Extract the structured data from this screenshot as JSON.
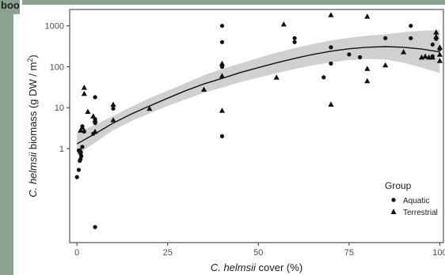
{
  "page_label": "boo",
  "chart_data": {
    "type": "scatter",
    "title": "",
    "xlabel_italic": "C. helmsii",
    "xlabel_rest": " cover (%)",
    "ylabel_italic": "C. helmsii",
    "ylabel_rest": " biomass (g DW / m",
    "ylabel_sup": "2",
    "ylabel_close": ")",
    "xlim": [
      -2,
      101
    ],
    "ylim_log10": [
      -2.3,
      3.4
    ],
    "y_scale": "log",
    "x_ticks": [
      0,
      25,
      50,
      75,
      100
    ],
    "x_tick_labels": [
      "0",
      "25",
      "50",
      "75",
      "100"
    ],
    "y_ticks": [
      1,
      10,
      100,
      1000
    ],
    "y_tick_labels": [
      "1",
      "10",
      "100",
      "1000"
    ],
    "grid": false,
    "legend": {
      "title": "Group",
      "placement": "right-inside",
      "entries": [
        {
          "label": "Aquatic",
          "marker": "circle"
        },
        {
          "label": "Terrestrial",
          "marker": "triangle"
        }
      ]
    },
    "series": [
      {
        "name": "Aquatic",
        "marker": "circle",
        "points": [
          [
            0,
            0.2
          ],
          [
            0.5,
            0.3
          ],
          [
            0.8,
            0.5
          ],
          [
            1,
            0.55
          ],
          [
            1,
            0.75
          ],
          [
            1.2,
            0.65
          ],
          [
            0.5,
            0.9
          ],
          [
            1.5,
            1.1
          ],
          [
            2,
            2.6
          ],
          [
            1.5,
            3.5
          ],
          [
            4.5,
            2.3
          ],
          [
            5,
            4.2
          ],
          [
            5,
            5.2
          ],
          [
            5,
            18
          ],
          [
            5,
            0.012
          ],
          [
            10,
            9.5
          ],
          [
            40,
            1000
          ],
          [
            40,
            400
          ],
          [
            40,
            100
          ],
          [
            40,
            2
          ],
          [
            60,
            500
          ],
          [
            60,
            400
          ],
          [
            70,
            300
          ],
          [
            70,
            120
          ],
          [
            68,
            55
          ],
          [
            75,
            200
          ],
          [
            78,
            170
          ],
          [
            85,
            500
          ],
          [
            92,
            1000
          ],
          [
            92,
            500
          ],
          [
            98,
            350
          ],
          [
            98,
            180
          ],
          [
            99,
            480
          ],
          [
            100,
            270
          ]
        ]
      },
      {
        "name": "Terrestrial",
        "marker": "triangle",
        "points": [
          [
            1,
            0.9
          ],
          [
            1,
            2.8
          ],
          [
            1.5,
            3.3
          ],
          [
            2,
            22
          ],
          [
            2,
            31
          ],
          [
            3,
            8
          ],
          [
            4.5,
            6.2
          ],
          [
            5,
            5
          ],
          [
            5,
            2.6
          ],
          [
            10,
            12
          ],
          [
            10,
            5
          ],
          [
            20,
            9.5
          ],
          [
            35,
            28
          ],
          [
            40,
            60
          ],
          [
            40,
            120
          ],
          [
            40,
            8.5
          ],
          [
            55,
            55
          ],
          [
            57,
            1100
          ],
          [
            70,
            1850
          ],
          [
            70,
            12
          ],
          [
            80,
            1700
          ],
          [
            80,
            90
          ],
          [
            80,
            45
          ],
          [
            85,
            110
          ],
          [
            90,
            230
          ],
          [
            95,
            170
          ],
          [
            96,
            180
          ],
          [
            97,
            170
          ],
          [
            98,
            170
          ],
          [
            99,
            700
          ],
          [
            99,
            550
          ],
          [
            100,
            140
          ],
          [
            100,
            200
          ],
          [
            100,
            300
          ]
        ]
      }
    ],
    "fit": {
      "style": "smoothed curve with grey confidence band",
      "x": [
        0,
        5,
        10,
        15,
        20,
        25,
        30,
        35,
        40,
        45,
        50,
        55,
        60,
        65,
        70,
        75,
        80,
        85,
        90,
        95,
        100
      ],
      "y": [
        1.3,
        2.3,
        4.2,
        7.0,
        11,
        17,
        26,
        38,
        52,
        72,
        95,
        125,
        160,
        200,
        240,
        275,
        300,
        310,
        300,
        270,
        230
      ],
      "lower": [
        0.7,
        1.4,
        2.8,
        4.7,
        7.2,
        11,
        16,
        23,
        31,
        42,
        54,
        70,
        88,
        108,
        128,
        145,
        155,
        150,
        125,
        95,
        70
      ],
      "upper": [
        2.4,
        3.8,
        6.3,
        10.5,
        17,
        26,
        40,
        62,
        88,
        120,
        165,
        220,
        285,
        360,
        440,
        510,
        570,
        620,
        700,
        760,
        780
      ]
    }
  }
}
